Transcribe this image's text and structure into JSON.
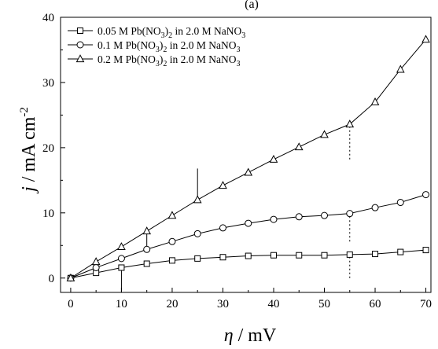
{
  "chart_data": {
    "type": "line",
    "panel_label": "(a)",
    "xlabel": {
      "symbol": "η",
      "unit": " / mV"
    },
    "ylabel": {
      "symbol": "j",
      "unit": " / mA cm",
      "exp": "-2"
    },
    "xlim": [
      -2,
      71
    ],
    "ylim": [
      -2.2,
      40
    ],
    "xticks": [
      "0",
      "10",
      "20",
      "30",
      "40",
      "50",
      "60",
      "70"
    ],
    "yticks": [
      "0",
      "10",
      "20",
      "30",
      "40"
    ],
    "grid": false,
    "legend_position": "top-left",
    "series": [
      {
        "name": "0.05 M Pb(NO3)2 in 2.0 M NaNO3",
        "legend": {
          "pre": "0.05 M Pb(NO",
          "sub1": "3",
          "mid": ")",
          "sub2": "2",
          "post": " in 2.0 M NaNO",
          "sub3": "3"
        },
        "marker": "square",
        "x": [
          0,
          5,
          10,
          15,
          20,
          25,
          30,
          35,
          40,
          45,
          50,
          55,
          60,
          65,
          70
        ],
        "y": [
          0,
          0.8,
          1.6,
          2.2,
          2.7,
          3.0,
          3.2,
          3.4,
          3.5,
          3.5,
          3.5,
          3.6,
          3.7,
          4.0,
          4.3
        ]
      },
      {
        "name": "0.1 M Pb(NO3)2 in 2.0 M NaNO3",
        "legend": {
          "pre": "0.1 M Pb(NO",
          "sub1": "3",
          "mid": ")",
          "sub2": "2",
          "post": " in 2.0 M NaNO",
          "sub3": "3"
        },
        "marker": "circle",
        "x": [
          0,
          5,
          10,
          15,
          20,
          25,
          30,
          35,
          40,
          45,
          50,
          55,
          60,
          65,
          70
        ],
        "y": [
          0,
          1.6,
          3.0,
          4.4,
          5.6,
          6.8,
          7.7,
          8.4,
          9.0,
          9.4,
          9.6,
          9.9,
          10.8,
          11.6,
          12.8
        ]
      },
      {
        "name": "0.2 M Pb(NO3)2 in 2.0 M NaNO3",
        "legend": {
          "pre": "0.2 M Pb(NO",
          "sub1": "3",
          "mid": ")",
          "sub2": "2",
          "post": " in 2.0 M NaNO",
          "sub3": "3"
        },
        "marker": "triangle",
        "x": [
          0,
          5,
          10,
          15,
          20,
          25,
          30,
          35,
          40,
          45,
          50,
          55,
          60,
          65,
          70
        ],
        "y": [
          0,
          2.5,
          4.8,
          7.2,
          9.6,
          12.0,
          14.2,
          16.2,
          18.2,
          20.1,
          22.0,
          23.6,
          27.0,
          32.0,
          36.6
        ]
      }
    ],
    "annotations": [
      {
        "type": "solid-vline",
        "x": 10,
        "y1": -2.2,
        "y2": 1.6
      },
      {
        "type": "solid-vline",
        "x": 15,
        "y1": 4.4,
        "y2": 7.2
      },
      {
        "type": "solid-vline",
        "x": 25,
        "y1": 12.0,
        "y2": 16.8
      },
      {
        "type": "dotted-vline",
        "x": 55,
        "y1": 0.0,
        "y2": 3.6
      },
      {
        "type": "dotted-vline",
        "x": 55,
        "y1": 5.6,
        "y2": 9.9
      },
      {
        "type": "dotted-vline",
        "x": 55,
        "y1": 18.2,
        "y2": 23.6
      }
    ]
  }
}
